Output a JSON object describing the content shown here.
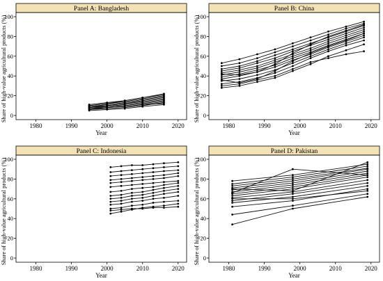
{
  "chart_data": [
    {
      "type": "line",
      "panel": "Panel A: Bangladesh",
      "xlabel": "Year",
      "ylabel": "Share of high-value agricultural products (%)",
      "xlim": [
        1975,
        2022
      ],
      "ylim": [
        0,
        100
      ],
      "xticks": [
        1980,
        1990,
        2000,
        2010,
        2020
      ],
      "yticks": [
        0,
        20,
        40,
        60,
        80,
        100
      ],
      "grid": false,
      "legend": "none",
      "header_color": "#f2e2b6",
      "series": [
        {
          "x": [
            1995,
            2000,
            2005,
            2010,
            2016
          ],
          "y": [
            5,
            6,
            7,
            9,
            11
          ]
        },
        {
          "x": [
            1995,
            2000,
            2005,
            2010,
            2016
          ],
          "y": [
            6,
            7,
            8,
            10,
            13
          ]
        },
        {
          "x": [
            1995,
            2000,
            2005,
            2010,
            2016
          ],
          "y": [
            7,
            8,
            9,
            11,
            14
          ]
        },
        {
          "x": [
            1995,
            2000,
            2005,
            2010,
            2016
          ],
          "y": [
            7,
            9,
            10,
            12,
            15
          ]
        },
        {
          "x": [
            1995,
            2000,
            2005,
            2010,
            2016
          ],
          "y": [
            8,
            9,
            11,
            13,
            16
          ]
        },
        {
          "x": [
            1995,
            2000,
            2005,
            2010,
            2016
          ],
          "y": [
            8,
            10,
            12,
            14,
            17
          ]
        },
        {
          "x": [
            1995,
            2000,
            2005,
            2010,
            2016
          ],
          "y": [
            9,
            10,
            12,
            15,
            18
          ]
        },
        {
          "x": [
            1995,
            2000,
            2005,
            2010,
            2016
          ],
          "y": [
            9,
            11,
            13,
            16,
            19
          ]
        },
        {
          "x": [
            1995,
            2000,
            2005,
            2010,
            2016
          ],
          "y": [
            10,
            12,
            14,
            17,
            20
          ]
        },
        {
          "x": [
            1995,
            2000,
            2005,
            2010,
            2016
          ],
          "y": [
            10,
            12,
            15,
            18,
            21
          ]
        },
        {
          "x": [
            1995,
            2000,
            2005,
            2010,
            2016
          ],
          "y": [
            6,
            8,
            9,
            11,
            12
          ]
        },
        {
          "x": [
            1995,
            2000,
            2005,
            2010,
            2016
          ],
          "y": [
            11,
            13,
            15,
            18,
            22
          ]
        }
      ]
    },
    {
      "type": "line",
      "panel": "Panel B: China",
      "xlabel": "Year",
      "ylabel": "Share of high-value agricultural products (%)",
      "xlim": [
        1975,
        2022
      ],
      "ylim": [
        0,
        100
      ],
      "xticks": [
        1980,
        1990,
        2000,
        2010,
        2020
      ],
      "yticks": [
        0,
        20,
        40,
        60,
        80,
        100
      ],
      "grid": false,
      "legend": "none",
      "header_color": "#f2e2b6",
      "series": [
        {
          "x": [
            1978,
            1983,
            1988,
            1993,
            1998,
            2003,
            2008,
            2013,
            2018
          ],
          "y": [
            28,
            30,
            34,
            38,
            45,
            52,
            60,
            66,
            72
          ]
        },
        {
          "x": [
            1978,
            1983,
            1988,
            1993,
            1998,
            2003,
            2008,
            2013,
            2018
          ],
          "y": [
            32,
            34,
            38,
            43,
            50,
            58,
            65,
            71,
            76
          ]
        },
        {
          "x": [
            1978,
            1983,
            1988,
            1993,
            1998,
            2003,
            2008,
            2013,
            2018
          ],
          "y": [
            35,
            37,
            41,
            46,
            53,
            60,
            67,
            73,
            79
          ]
        },
        {
          "x": [
            1978,
            1983,
            1988,
            1993,
            1998,
            2003,
            2008,
            2013,
            2018
          ],
          "y": [
            37,
            40,
            44,
            49,
            56,
            62,
            69,
            75,
            81
          ]
        },
        {
          "x": [
            1978,
            1983,
            1988,
            1993,
            1998,
            2003,
            2008,
            2013,
            2018
          ],
          "y": [
            39,
            42,
            46,
            51,
            58,
            64,
            71,
            77,
            83
          ]
        },
        {
          "x": [
            1978,
            1983,
            1988,
            1993,
            1998,
            2003,
            2008,
            2013,
            2018
          ],
          "y": [
            41,
            44,
            48,
            54,
            60,
            66,
            73,
            79,
            85
          ]
        },
        {
          "x": [
            1978,
            1983,
            1988,
            1993,
            1998,
            2003,
            2008,
            2013,
            2018
          ],
          "y": [
            43,
            46,
            50,
            56,
            62,
            68,
            75,
            81,
            87
          ]
        },
        {
          "x": [
            1978,
            1983,
            1988,
            1993,
            1998,
            2003,
            2008,
            2013,
            2018
          ],
          "y": [
            45,
            48,
            53,
            58,
            65,
            71,
            77,
            83,
            89
          ]
        },
        {
          "x": [
            1978,
            1983,
            1988,
            1993,
            1998,
            2003,
            2008,
            2013,
            2018
          ],
          "y": [
            47,
            50,
            55,
            61,
            67,
            73,
            79,
            85,
            91
          ]
        },
        {
          "x": [
            1978,
            1983,
            1988,
            1993,
            1998,
            2003,
            2008,
            2013,
            2018
          ],
          "y": [
            50,
            53,
            58,
            64,
            70,
            76,
            82,
            88,
            93
          ]
        },
        {
          "x": [
            1978,
            1983,
            1988,
            1993,
            1998,
            2003,
            2008,
            2013,
            2018
          ],
          "y": [
            53,
            57,
            62,
            67,
            73,
            79,
            85,
            90,
            95
          ]
        },
        {
          "x": [
            1978,
            1983,
            1988,
            1993,
            1998,
            2003,
            2008,
            2013,
            2018
          ],
          "y": [
            30,
            32,
            36,
            40,
            47,
            54,
            58,
            62,
            65
          ]
        },
        {
          "x": [
            1978,
            1983,
            1988,
            1993,
            1998,
            2003,
            2008,
            2013,
            2018
          ],
          "y": [
            42,
            41,
            44,
            52,
            63,
            72,
            80,
            86,
            92
          ]
        },
        {
          "x": [
            1978,
            1983,
            1988,
            1993,
            1998,
            2003,
            2008,
            2013,
            2018
          ],
          "y": [
            36,
            33,
            37,
            45,
            55,
            63,
            70,
            76,
            83
          ]
        }
      ]
    },
    {
      "type": "line",
      "panel": "Panel C: Indonesia",
      "xlabel": "Year",
      "ylabel": "Share of high-value agricultural products (%)",
      "xlim": [
        1975,
        2022
      ],
      "ylim": [
        0,
        100
      ],
      "xticks": [
        1980,
        1990,
        2000,
        2010,
        2020
      ],
      "yticks": [
        0,
        20,
        40,
        60,
        80,
        100
      ],
      "grid": false,
      "legend": "none",
      "header_color": "#f2e2b6",
      "series": [
        {
          "x": [
            2001,
            2004,
            2007,
            2010,
            2013,
            2016,
            2020
          ],
          "y": [
            45,
            47,
            49,
            51,
            52,
            53,
            55
          ]
        },
        {
          "x": [
            2001,
            2004,
            2007,
            2010,
            2013,
            2016,
            2020
          ],
          "y": [
            50,
            51,
            53,
            54,
            56,
            57,
            58
          ]
        },
        {
          "x": [
            2001,
            2004,
            2007,
            2010,
            2013,
            2016,
            2020
          ],
          "y": [
            54,
            55,
            57,
            58,
            60,
            61,
            63
          ]
        },
        {
          "x": [
            2001,
            2004,
            2007,
            2010,
            2013,
            2016,
            2020
          ],
          "y": [
            57,
            58,
            60,
            61,
            63,
            65,
            67
          ]
        },
        {
          "x": [
            2001,
            2004,
            2007,
            2010,
            2013,
            2016,
            2020
          ],
          "y": [
            60,
            61,
            63,
            64,
            66,
            68,
            70
          ]
        },
        {
          "x": [
            2001,
            2004,
            2007,
            2010,
            2013,
            2016,
            2020
          ],
          "y": [
            63,
            64,
            66,
            67,
            69,
            71,
            73
          ]
        },
        {
          "x": [
            2001,
            2004,
            2007,
            2010,
            2013,
            2016,
            2020
          ],
          "y": [
            67,
            68,
            70,
            71,
            72,
            74,
            76
          ]
        },
        {
          "x": [
            2001,
            2004,
            2007,
            2010,
            2013,
            2016,
            2020
          ],
          "y": [
            72,
            73,
            74,
            75,
            76,
            77,
            78
          ]
        },
        {
          "x": [
            2001,
            2004,
            2007,
            2010,
            2013,
            2016,
            2020
          ],
          "y": [
            76,
            77,
            78,
            79,
            80,
            81,
            83
          ]
        },
        {
          "x": [
            2001,
            2004,
            2007,
            2010,
            2013,
            2016,
            2020
          ],
          "y": [
            79,
            80,
            81,
            82,
            83,
            84,
            86
          ]
        },
        {
          "x": [
            2001,
            2004,
            2007,
            2010,
            2013,
            2016,
            2020
          ],
          "y": [
            83,
            84,
            85,
            86,
            87,
            88,
            89
          ]
        },
        {
          "x": [
            2001,
            2004,
            2007,
            2010,
            2013,
            2016,
            2020
          ],
          "y": [
            87,
            88,
            89,
            90,
            91,
            92,
            93
          ]
        },
        {
          "x": [
            2001,
            2004,
            2007,
            2010,
            2013,
            2016,
            2020
          ],
          "y": [
            92,
            93,
            94,
            94,
            95,
            96,
            97
          ]
        },
        {
          "x": [
            2001,
            2004,
            2007,
            2010,
            2013,
            2016,
            2020
          ],
          "y": [
            48,
            49,
            50,
            50,
            51,
            51,
            52
          ]
        }
      ]
    },
    {
      "type": "line",
      "panel": "Panel D: Pakistan",
      "xlabel": "Year",
      "ylabel": "Share of high-value agricultural products (%)",
      "xlim": [
        1975,
        2022
      ],
      "ylim": [
        0,
        100
      ],
      "xticks": [
        1980,
        1990,
        2000,
        2010,
        2020
      ],
      "yticks": [
        0,
        20,
        40,
        60,
        80,
        100
      ],
      "grid": false,
      "legend": "none",
      "header_color": "#f2e2b6",
      "series": [
        {
          "x": [
            1981,
            1998,
            2019
          ],
          "y": [
            34,
            50,
            62
          ]
        },
        {
          "x": [
            1981,
            1998,
            2019
          ],
          "y": [
            44,
            53,
            65
          ]
        },
        {
          "x": [
            1981,
            1998,
            2019
          ],
          "y": [
            52,
            58,
            70
          ]
        },
        {
          "x": [
            1981,
            1998,
            2019
          ],
          "y": [
            56,
            62,
            73
          ]
        },
        {
          "x": [
            1981,
            1998,
            2019
          ],
          "y": [
            58,
            65,
            76
          ]
        },
        {
          "x": [
            1981,
            1998,
            2019
          ],
          "y": [
            61,
            67,
            79
          ]
        },
        {
          "x": [
            1981,
            1998,
            2019
          ],
          "y": [
            63,
            70,
            82
          ]
        },
        {
          "x": [
            1981,
            1998,
            2019
          ],
          "y": [
            65,
            72,
            84
          ]
        },
        {
          "x": [
            1981,
            1998,
            2019
          ],
          "y": [
            67,
            74,
            86
          ]
        },
        {
          "x": [
            1981,
            1998,
            2019
          ],
          "y": [
            69,
            76,
            88
          ]
        },
        {
          "x": [
            1981,
            1998,
            2019
          ],
          "y": [
            71,
            78,
            90
          ]
        },
        {
          "x": [
            1981,
            1998,
            2019
          ],
          "y": [
            73,
            80,
            91
          ]
        },
        {
          "x": [
            1981,
            1998,
            2019
          ],
          "y": [
            75,
            82,
            93
          ]
        },
        {
          "x": [
            1981,
            1998,
            2019
          ],
          "y": [
            78,
            84,
            95
          ]
        },
        {
          "x": [
            1981,
            1998,
            2019
          ],
          "y": [
            66,
            90,
            84
          ]
        },
        {
          "x": [
            1981,
            1998,
            2019
          ],
          "y": [
            60,
            60,
            68
          ]
        },
        {
          "x": [
            1981,
            1998,
            2019
          ],
          "y": [
            70,
            68,
            97
          ]
        }
      ]
    }
  ]
}
